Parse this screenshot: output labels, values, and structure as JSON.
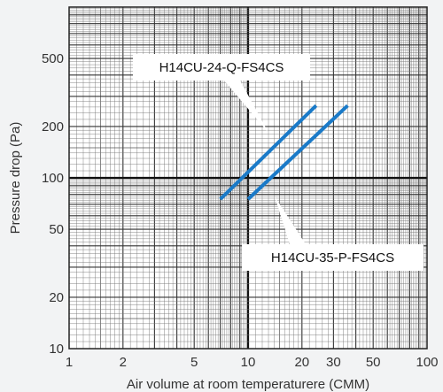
{
  "chart_data": {
    "type": "line",
    "xscale": "log",
    "yscale": "log",
    "xlim": [
      1,
      100
    ],
    "ylim": [
      10,
      1000
    ],
    "grid": true,
    "xlabel": "Air volume at room temperaturere (CMM)",
    "ylabel": "Pressure drop (Pa)",
    "xticks": [
      1,
      2,
      5,
      10,
      20,
      30,
      50,
      100
    ],
    "yticks": [
      10,
      20,
      50,
      100,
      200,
      500
    ],
    "series": [
      {
        "name": "H14CU-24-Q-FS4CS",
        "color": "#1a7ac8",
        "x": [
          7,
          24
        ],
        "y": [
          75,
          265
        ]
      },
      {
        "name": "H14CU-35-P-FS4CS",
        "color": "#1a7ac8",
        "x": [
          10,
          36
        ],
        "y": [
          75,
          265
        ]
      }
    ]
  }
}
